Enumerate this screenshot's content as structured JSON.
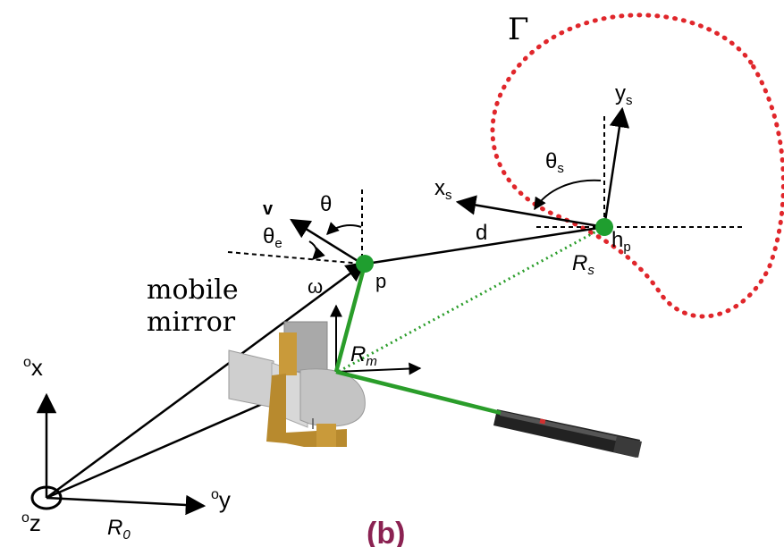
{
  "labels": {
    "gamma": "Γ",
    "ys": "y",
    "ys_sub": "s",
    "xs": "x",
    "xs_sub": "s",
    "theta_s": "θ",
    "theta_s_sub": "s",
    "v": "v",
    "theta": "θ",
    "theta_e": "θ",
    "theta_e_sub": "e",
    "d": "d",
    "hp": "h",
    "hp_sub": "p",
    "Rs": "R",
    "Rs_sub": "s",
    "p": "p",
    "omega": "ω",
    "mobile": "mobile",
    "mirror": "mirror",
    "Rm": "R",
    "Rm_sub": "m",
    "ox_pre": "o",
    "ox": "x",
    "oy_pre": "o",
    "oy": "y",
    "oz_pre": "o",
    "oz": "z",
    "R0": "R",
    "R0_sub": "0",
    "caption": "(b)"
  },
  "colors": {
    "line": "#000000",
    "green_link": "#2a9d2a",
    "green_dot": "#1f9e2f",
    "curve": "#e0262b",
    "caption": "#8b2252",
    "mirror_body": "#b9b9b9",
    "mirror_gold": "#b88a2e",
    "laser_body": "#222222"
  },
  "icons": {
    "mirror": "mobile-mirror-device-icon",
    "laser": "laser-pointer-icon"
  }
}
